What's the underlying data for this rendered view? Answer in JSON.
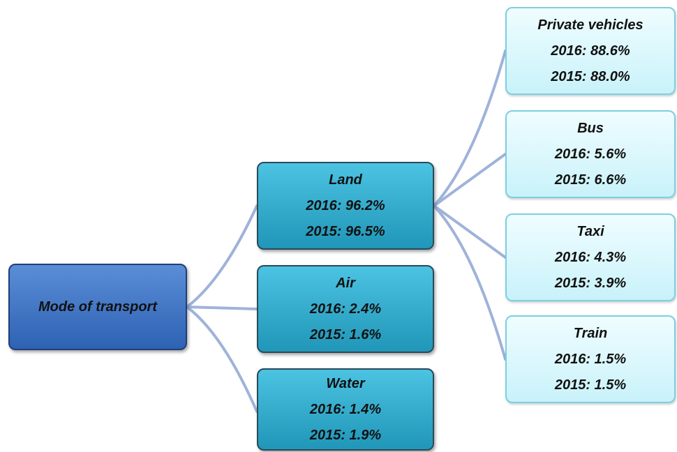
{
  "root": {
    "label": "Mode of transport"
  },
  "level1": [
    {
      "label": "Land",
      "lines": [
        "2016: 96.2%",
        "2015: 96.5%"
      ]
    },
    {
      "label": "Air",
      "lines": [
        "2016: 2.4%",
        "2015: 1.6%"
      ]
    },
    {
      "label": "Water",
      "lines": [
        "2016: 1.4%",
        "2015: 1.9%"
      ]
    }
  ],
  "level2": [
    {
      "label": "Private vehicles",
      "lines": [
        "2016: 88.6%",
        "2015: 88.0%"
      ]
    },
    {
      "label": "Bus",
      "lines": [
        "2016: 5.6%",
        "2015: 6.6%"
      ]
    },
    {
      "label": "Taxi",
      "lines": [
        "2016: 4.3%",
        "2015: 3.9%"
      ]
    },
    {
      "label": "Train",
      "lines": [
        "2016: 1.5%",
        "2015: 1.5%"
      ]
    }
  ]
}
